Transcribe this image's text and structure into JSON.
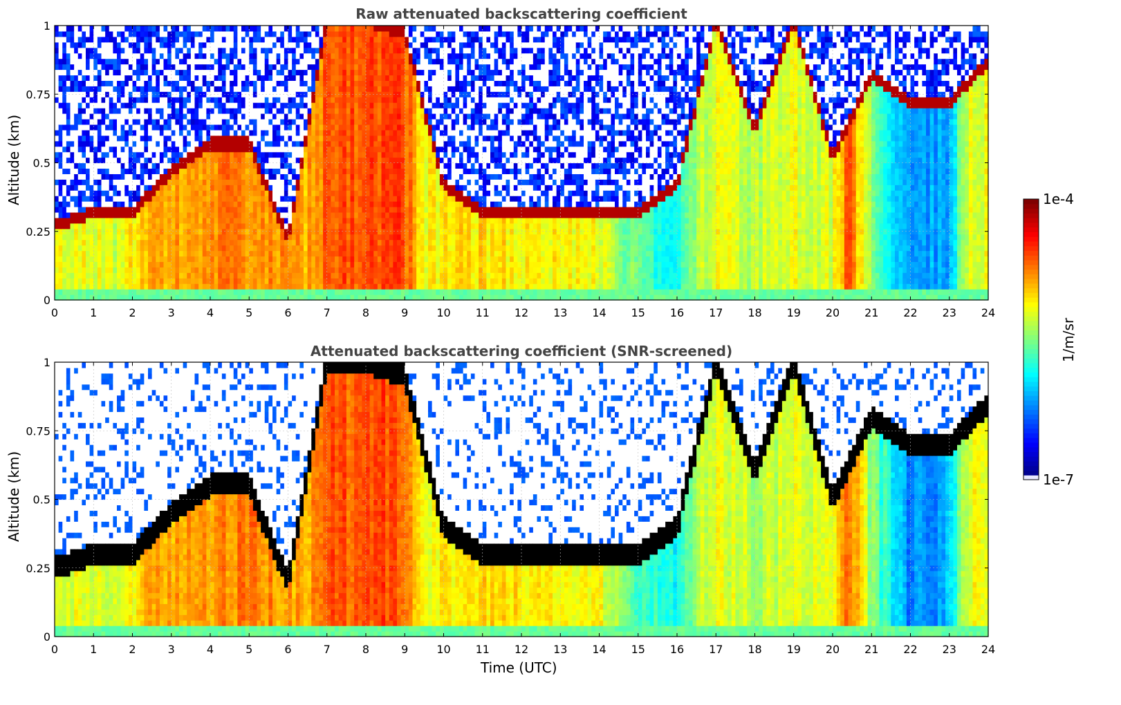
{
  "chart_data": [
    {
      "type": "heatmap",
      "title": "Raw attenuated backscattering coefficient",
      "xlabel": "",
      "ylabel": "Altitude (km)",
      "xlim": [
        0,
        24
      ],
      "ylim": [
        0,
        1
      ],
      "x_ticks": [
        "0",
        "1",
        "2",
        "3",
        "4",
        "5",
        "6",
        "7",
        "8",
        "9",
        "10",
        "11",
        "12",
        "13",
        "14",
        "15",
        "16",
        "17",
        "18",
        "19",
        "20",
        "21",
        "22",
        "23",
        "24"
      ],
      "y_ticks": [
        "0",
        "0.25",
        "0.5",
        "0.75",
        "1"
      ],
      "grid": true,
      "screened": false
    },
    {
      "type": "heatmap",
      "title": "Attenuated backscattering coefficient (SNR-screened)",
      "xlabel": "Time (UTC)",
      "ylabel": "Altitude (km)",
      "xlim": [
        0,
        24
      ],
      "ylim": [
        0,
        1
      ],
      "x_ticks": [
        "0",
        "1",
        "2",
        "3",
        "4",
        "5",
        "6",
        "7",
        "8",
        "9",
        "10",
        "11",
        "12",
        "13",
        "14",
        "15",
        "16",
        "17",
        "18",
        "19",
        "20",
        "21",
        "22",
        "23",
        "24"
      ],
      "y_ticks": [
        "0",
        "0.25",
        "0.5",
        "0.75",
        "1"
      ],
      "grid": true,
      "screened": true
    }
  ],
  "colorbar": {
    "max_label": "1e-4",
    "min_label": "1e-7",
    "unit_label": "1/m/sr",
    "colormap": "jet",
    "scale": "log"
  }
}
